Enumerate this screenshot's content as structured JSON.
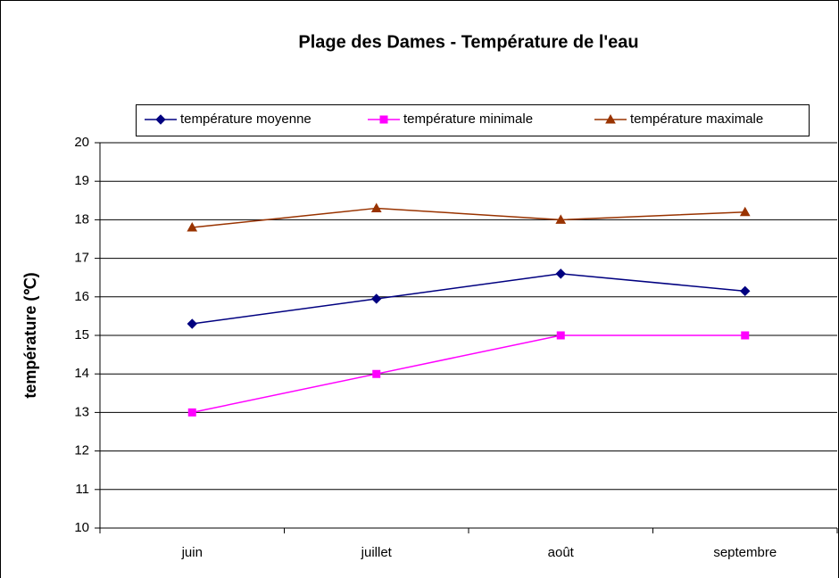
{
  "chart_data": {
    "type": "line",
    "title": "Plage des Dames - Température de l'eau",
    "y_label": "température (℃)",
    "categories": [
      "juin",
      "juillet",
      "août",
      "septembre"
    ],
    "series": [
      {
        "name": "température moyenne",
        "color": "#000080",
        "marker": "diamond",
        "values": [
          15.3,
          15.95,
          16.6,
          16.15
        ]
      },
      {
        "name": "température minimale",
        "color": "#ff00ff",
        "marker": "square",
        "values": [
          13,
          14,
          15,
          15
        ]
      },
      {
        "name": "température maximale",
        "color": "#993300",
        "marker": "triangle",
        "values": [
          17.8,
          18.3,
          18,
          18.2
        ]
      }
    ],
    "ylim": [
      10,
      20
    ],
    "yticks": [
      10,
      11,
      12,
      13,
      14,
      15,
      16,
      17,
      18,
      19,
      20
    ],
    "grid": true,
    "legend": "top"
  }
}
